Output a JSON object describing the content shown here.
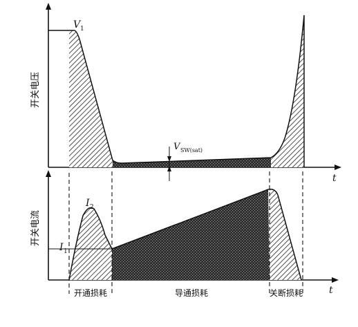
{
  "top_panel": {
    "y_axis_label": "开关电压",
    "x_axis_label": "t",
    "peak_label_main": "V",
    "peak_label_sub": "1",
    "sat_label_main": "V",
    "sat_label_sub": "SW(sat)"
  },
  "bottom_panel": {
    "y_axis_label": "开关电流",
    "x_axis_label": "t",
    "peak_label_main": "I",
    "peak_label_sub": "2",
    "level_label_main": "I",
    "level_label_sub": "1"
  },
  "regions": {
    "turn_on_loss": "开通损耗",
    "conduction_loss": "导通损耗",
    "turn_off_loss": "关断损耗"
  }
}
